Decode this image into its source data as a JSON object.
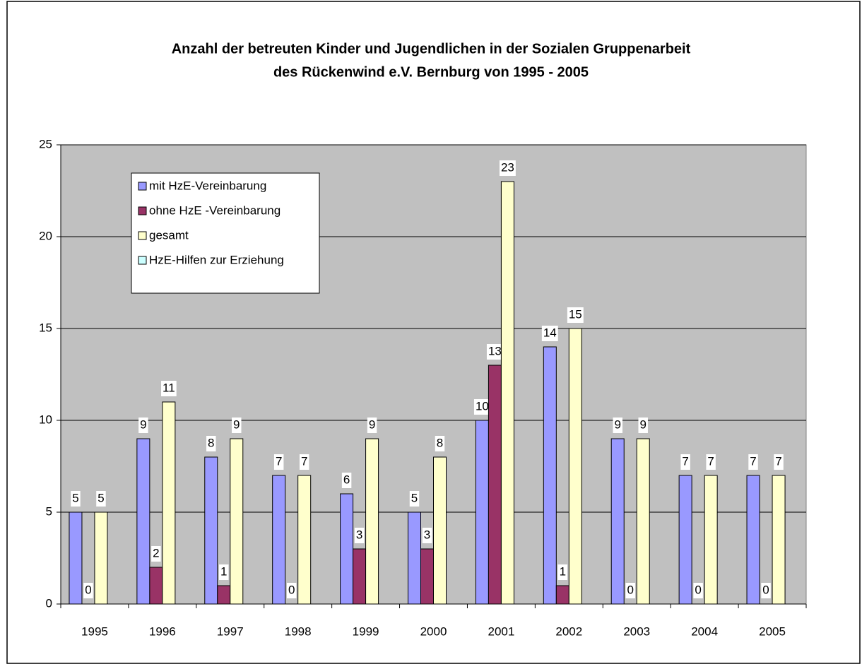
{
  "chart_data": {
    "type": "bar",
    "title": [
      "Anzahl der betreuten Kinder und Jugendlichen in der Sozialen Gruppenarbeit",
      "des Rückenwind e.V. Bernburg von 1995 - 2005"
    ],
    "categories": [
      "1995",
      "1996",
      "1997",
      "1998",
      "1999",
      "2000",
      "2001",
      "2002",
      "2003",
      "2004",
      "2005"
    ],
    "series": [
      {
        "name": "mit HzE-Vereinbarung",
        "color": "#9999ff",
        "values": [
          5,
          9,
          8,
          7,
          6,
          5,
          10,
          14,
          9,
          7,
          7
        ]
      },
      {
        "name": "ohne HzE -Vereinbarung",
        "color": "#993366",
        "values": [
          0,
          2,
          1,
          0,
          3,
          3,
          13,
          1,
          0,
          0,
          0
        ]
      },
      {
        "name": "gesamt",
        "color": "#ffffcc",
        "values": [
          5,
          11,
          9,
          7,
          9,
          8,
          23,
          15,
          9,
          7,
          7
        ]
      },
      {
        "name": "HzE-Hilfen zur Erziehung",
        "color": "#ccffff",
        "values": [
          null,
          null,
          null,
          null,
          null,
          null,
          null,
          null,
          null,
          null,
          null
        ]
      }
    ],
    "ylim": [
      0,
      25
    ],
    "yticks": [
      0,
      5,
      10,
      15,
      20,
      25
    ],
    "grid": true,
    "legend": "upper left",
    "plot_background": "#c0c0c0"
  }
}
